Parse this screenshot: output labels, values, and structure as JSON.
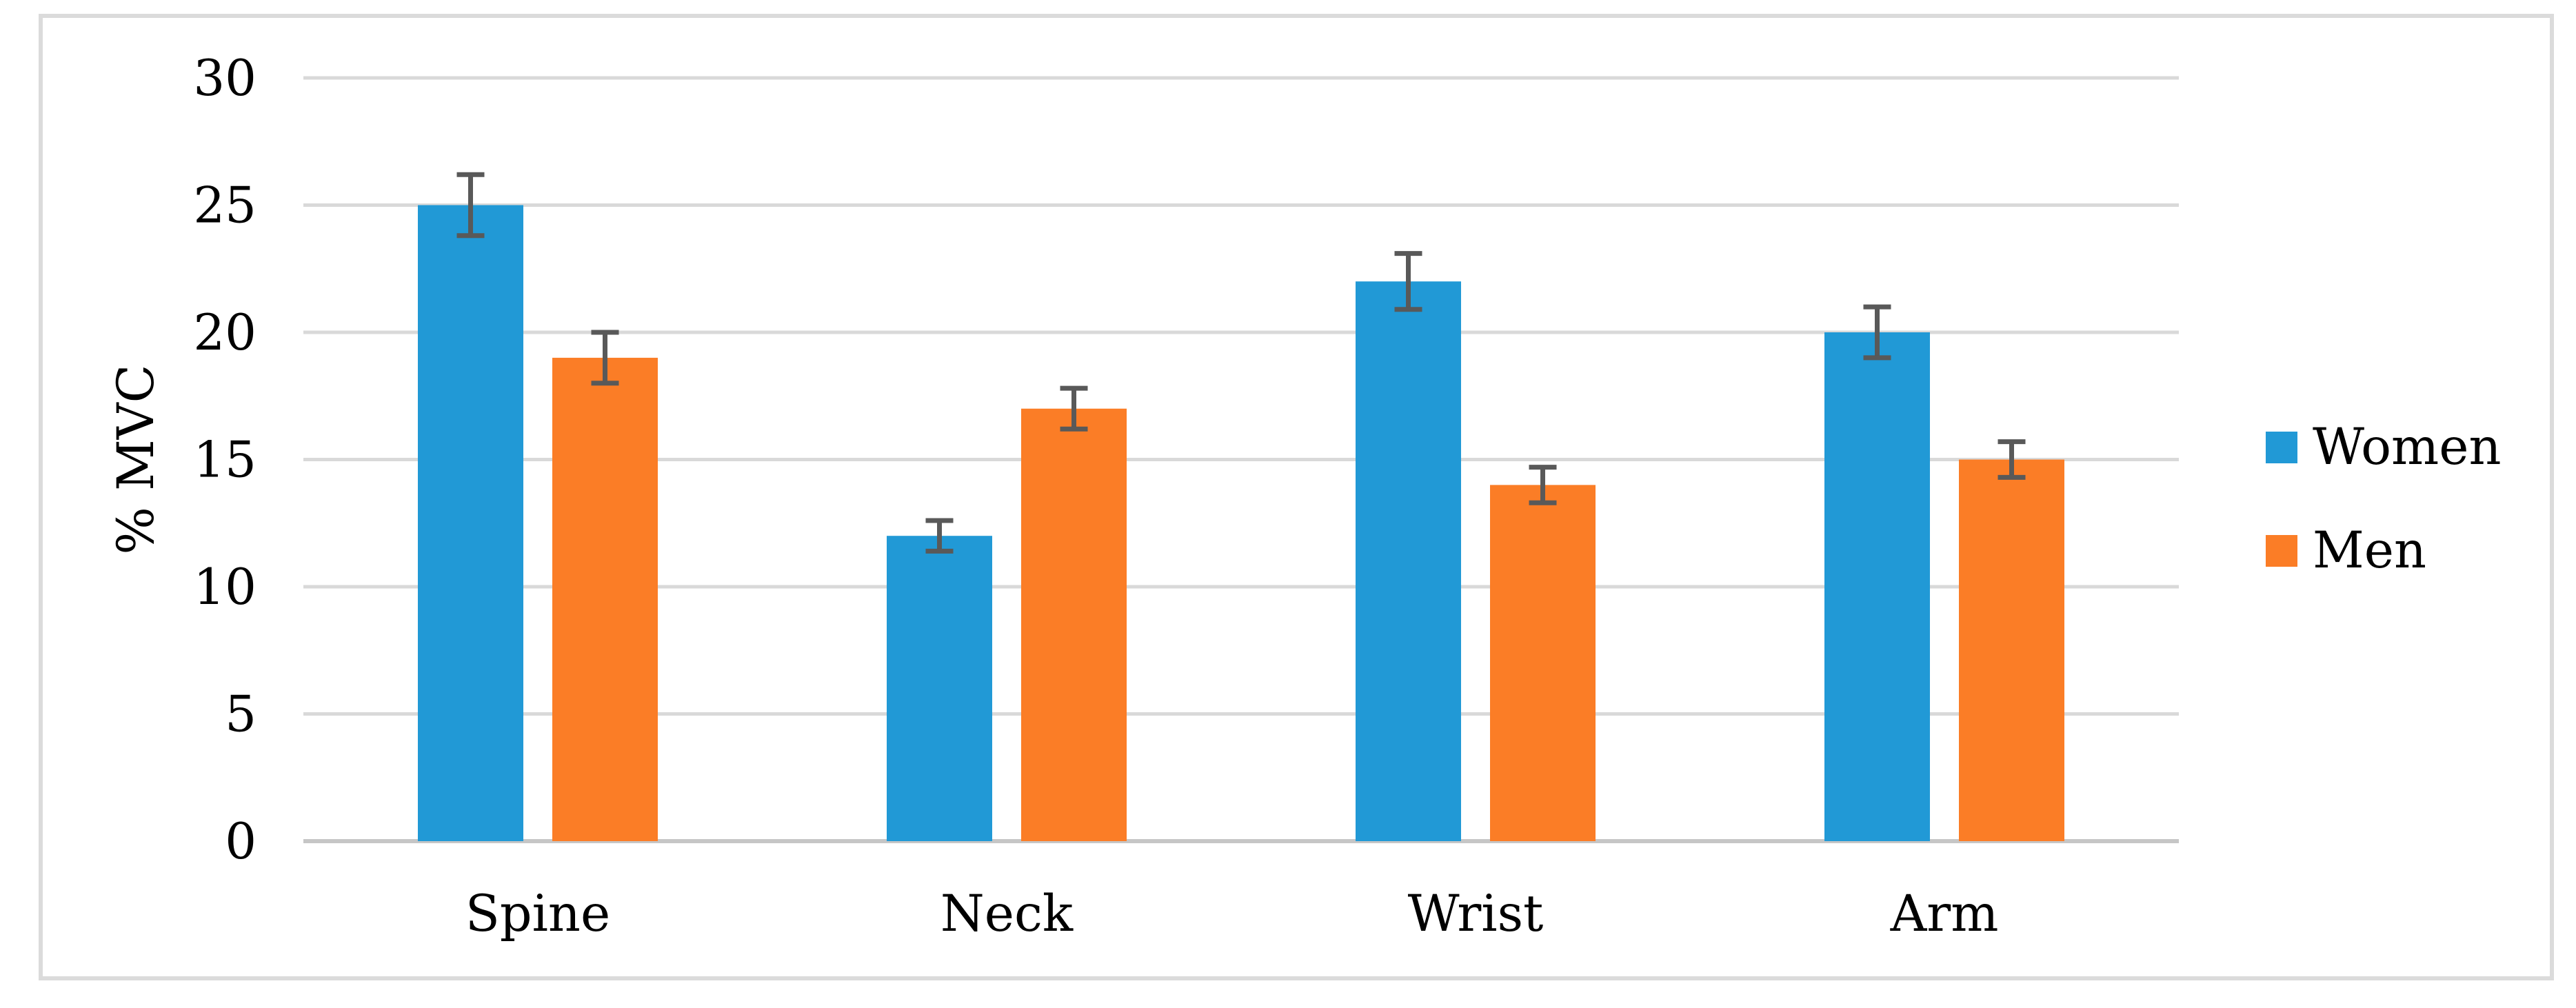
{
  "figure": {
    "background_color": "#ffffff",
    "frame_border_color": "#dbdbdb"
  },
  "chart_data": {
    "type": "bar",
    "title": "",
    "categories": [
      "Spine",
      "Neck",
      "Wrist",
      "Arm"
    ],
    "series": [
      {
        "name": "Women",
        "color": "#2199d6",
        "values": [
          25,
          12,
          22,
          20
        ],
        "errors": [
          1.2,
          0.6,
          1.1,
          1.0
        ]
      },
      {
        "name": "Men",
        "color": "#fb7d26",
        "values": [
          19,
          17,
          14,
          15
        ],
        "errors": [
          1.0,
          0.8,
          0.7,
          0.7
        ]
      }
    ],
    "xlabel": "",
    "ylabel": "% MVC",
    "ylim": [
      0,
      30
    ],
    "yticks": [
      0,
      5,
      10,
      15,
      20,
      25,
      30
    ],
    "grid": true,
    "gridline_color": "#d9d9d9",
    "baseline_color": "#c6c6c6",
    "error_bar_color": "#595959",
    "text_color": "#000000",
    "legend_position": "right"
  }
}
